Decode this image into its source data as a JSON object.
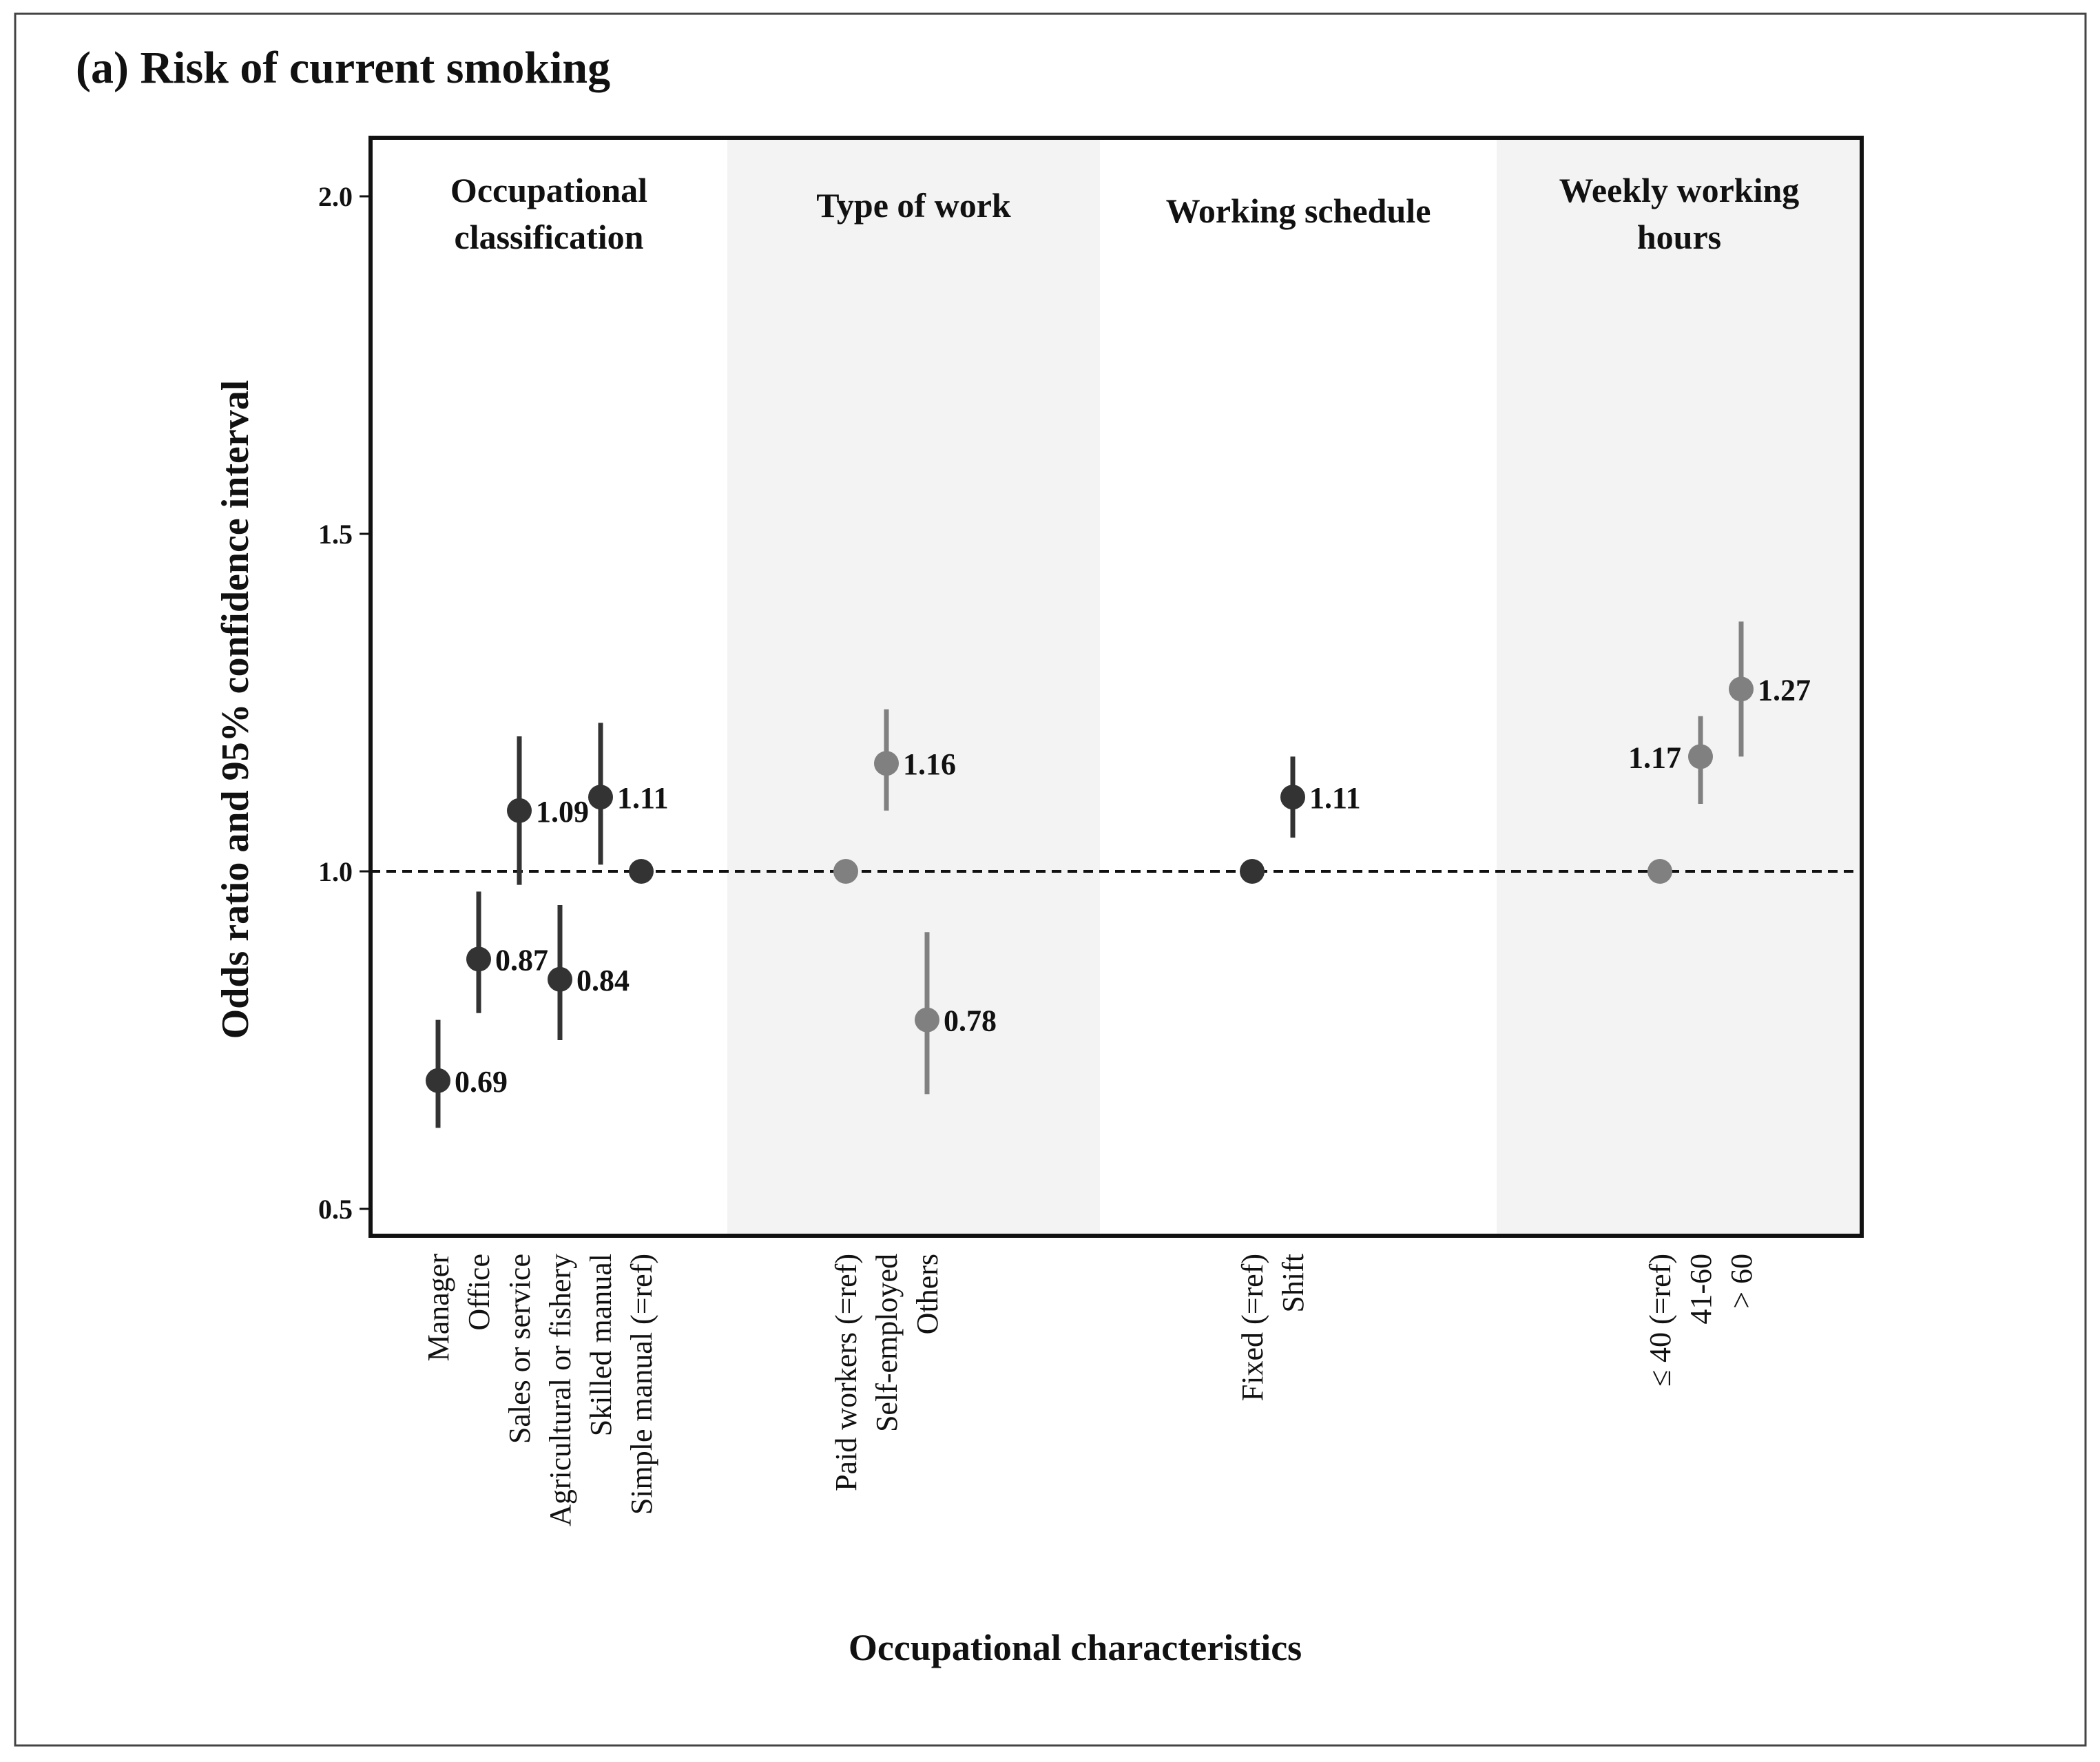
{
  "chart_data": {
    "type": "scatter",
    "title": "(a) Risk of current smoking",
    "ylabel": "Odds ratio and 95% confidence interval",
    "xlabel": "Occupational characteristics",
    "ylim": [
      0.5,
      2.0
    ],
    "yticks": [
      "0.5",
      "1.0",
      "1.5",
      "2.0"
    ],
    "reference_line": 1.0,
    "grid": false,
    "colors": {
      "dark": "#333333",
      "gray": "#808080",
      "band": "#f3f3f3"
    },
    "groups": [
      {
        "name": "Occupational classification",
        "label_lines": [
          "Occupational",
          "classification"
        ],
        "shaded": false,
        "color": "#333333",
        "points": [
          {
            "category": "Manager",
            "or": 0.69,
            "lo": 0.62,
            "hi": 0.78,
            "label": "0.69"
          },
          {
            "category": "Office",
            "or": 0.87,
            "lo": 0.79,
            "hi": 0.97,
            "label": "0.87"
          },
          {
            "category": "Sales or service",
            "or": 1.09,
            "lo": 0.98,
            "hi": 1.2,
            "label": "1.09"
          },
          {
            "category": "Agricultural or fishery",
            "or": 0.84,
            "lo": 0.75,
            "hi": 0.95,
            "label": "0.84"
          },
          {
            "category": "Skilled manual",
            "or": 1.11,
            "lo": 1.01,
            "hi": 1.22,
            "label": "1.11"
          },
          {
            "category": "Simple manual (=ref)",
            "or": 1.0,
            "lo": null,
            "hi": null,
            "label": ""
          }
        ]
      },
      {
        "name": "Type of work",
        "label_lines": [
          "Type of work"
        ],
        "shaded": true,
        "color": "#808080",
        "points": [
          {
            "category": "Paid workers (=ref)",
            "or": 1.0,
            "lo": null,
            "hi": null,
            "label": ""
          },
          {
            "category": "Self-employed",
            "or": 1.16,
            "lo": 1.09,
            "hi": 1.24,
            "label": "1.16"
          },
          {
            "category": "Others",
            "or": 0.78,
            "lo": 0.67,
            "hi": 0.91,
            "label": "0.78"
          }
        ]
      },
      {
        "name": "Working schedule",
        "label_lines": [
          "Working schedule"
        ],
        "shaded": false,
        "color": "#333333",
        "points": [
          {
            "category": "Fixed (=ref)",
            "or": 1.0,
            "lo": null,
            "hi": null,
            "label": ""
          },
          {
            "category": "Shift",
            "or": 1.11,
            "lo": 1.05,
            "hi": 1.17,
            "label": "1.11"
          }
        ]
      },
      {
        "name": "Weekly working hours",
        "label_lines": [
          "Weekly working",
          "hours"
        ],
        "shaded": true,
        "color": "#808080",
        "points": [
          {
            "category": "≤ 40 (=ref)",
            "or": 1.0,
            "lo": null,
            "hi": null,
            "label": ""
          },
          {
            "category": "41-60",
            "or": 1.17,
            "lo": 1.1,
            "hi": 1.23,
            "label": "1.17",
            "label_side": "left"
          },
          {
            "category": "> 60",
            "or": 1.27,
            "lo": 1.17,
            "hi": 1.37,
            "label": "1.27"
          }
        ]
      }
    ]
  }
}
